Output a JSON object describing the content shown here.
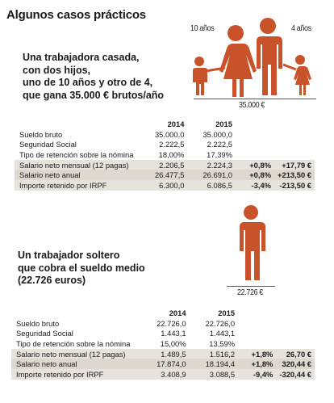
{
  "title": "Algunos casos prácticos",
  "case1": {
    "heading_lines": [
      "Una trabajadora casada,",
      "con dos hijos,",
      "uno de 10 años y otro de 4,",
      "que gana 35.000 € brutos/año"
    ],
    "label_child1": "10 años",
    "label_child2": "4 años",
    "figure_caption": "35.000 €",
    "col_2014": "2014",
    "col_2015": "2015",
    "rows": [
      {
        "label": "Sueldo bruto",
        "y2014": "35.000,0",
        "y2015": "35.000,0",
        "pct": "",
        "eur": ""
      },
      {
        "label": "Seguridad Social",
        "y2014": "2.222,5",
        "y2015": "2.222,5",
        "pct": "",
        "eur": ""
      },
      {
        "label": "Tipo de retención sobre la nómina",
        "y2014": "18,00%",
        "y2015": "17,39%",
        "pct": "",
        "eur": ""
      },
      {
        "label": "Salario neto mensual (12 pagas)",
        "y2014": "2.206,5",
        "y2015": "2.224,3",
        "pct": "+0,8%",
        "eur": "+17,79 €"
      },
      {
        "label": "Salario neto anual",
        "y2014": "26.477,5",
        "y2015": "26.691,0",
        "pct": "+0,8%",
        "eur": "+213,50 €"
      },
      {
        "label": "Importe retenido por IRPF",
        "y2014": "6.300,0",
        "y2015": "6.086,5",
        "pct": "-3,4%",
        "eur": "-213,50 €"
      }
    ]
  },
  "case2": {
    "heading_lines": [
      "Un trabajador soltero",
      "que cobra el sueldo medio",
      "(22.726 euros)"
    ],
    "figure_caption": "22.726 €",
    "col_2014": "2014",
    "col_2015": "2015",
    "rows": [
      {
        "label": "Sueldo bruto",
        "y2014": "22.726,0",
        "y2015": "22.726,0",
        "pct": "",
        "eur": ""
      },
      {
        "label": "Seguridad Social",
        "y2014": "1.443,1",
        "y2015": "1.443,1",
        "pct": "",
        "eur": ""
      },
      {
        "label": "Tipo de retención sobre la nómina",
        "y2014": "15,00%",
        "y2015": "13,59%",
        "pct": "",
        "eur": ""
      },
      {
        "label": "Salario neto mensual (12 pagas)",
        "y2014": "1.489,5",
        "y2015": "1.516,2",
        "pct": "+1,8%",
        "eur": "26,70 €"
      },
      {
        "label": "Salario neto anual",
        "y2014": "17.874,0",
        "y2015": "18.194,4",
        "pct": "+1,8%",
        "eur": "320,44 €"
      },
      {
        "label": "Importe retenido por IRPF",
        "y2014": "3.408,9",
        "y2015": "3.088,5",
        "pct": "-9,4%",
        "eur": "-320,44 €"
      }
    ]
  },
  "colors": {
    "figure": "#c8532b",
    "row_shade": "#e6e3dd"
  },
  "icons": [
    "family-figure-icon",
    "man-figure-icon"
  ]
}
